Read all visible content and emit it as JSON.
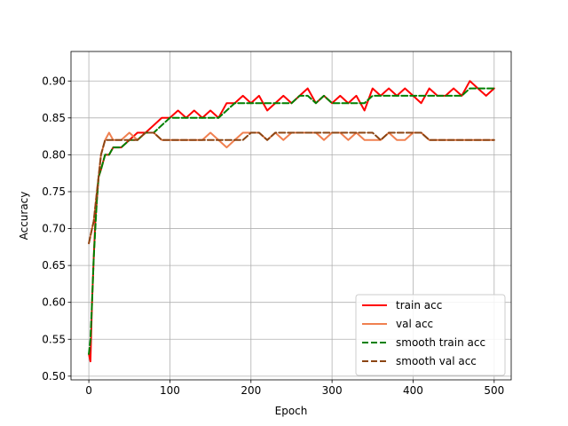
{
  "chart_data": {
    "type": "line",
    "title": "",
    "xlabel": "Epoch",
    "ylabel": "Accuracy",
    "xlim": [
      -22,
      521
    ],
    "ylim": [
      0.495,
      0.94
    ],
    "xticks": [
      0,
      100,
      200,
      300,
      400,
      500
    ],
    "xtick_labels": [
      "0",
      "100",
      "200",
      "300",
      "400",
      "500"
    ],
    "yticks": [
      0.5,
      0.55,
      0.6,
      0.65,
      0.7,
      0.75,
      0.8,
      0.85,
      0.9
    ],
    "ytick_labels": [
      "0.50",
      "0.55",
      "0.60",
      "0.65",
      "0.70",
      "0.75",
      "0.80",
      "0.85",
      "0.90"
    ],
    "grid": true,
    "legend_position": "lower-right",
    "series": [
      {
        "name": "train acc",
        "color": "#ff0000",
        "style": "solid",
        "x": [
          0,
          2,
          4,
          6,
          8,
          10,
          12,
          15,
          20,
          25,
          30,
          40,
          50,
          60,
          70,
          80,
          90,
          100,
          110,
          120,
          130,
          140,
          150,
          160,
          170,
          180,
          190,
          200,
          210,
          220,
          230,
          240,
          250,
          260,
          270,
          280,
          290,
          300,
          310,
          320,
          330,
          340,
          350,
          360,
          370,
          380,
          390,
          400,
          410,
          420,
          430,
          440,
          450,
          460,
          470,
          480,
          490,
          500
        ],
        "y": [
          0.53,
          0.52,
          0.6,
          0.66,
          0.71,
          0.74,
          0.77,
          0.78,
          0.8,
          0.8,
          0.81,
          0.81,
          0.82,
          0.83,
          0.83,
          0.84,
          0.85,
          0.85,
          0.86,
          0.85,
          0.86,
          0.85,
          0.86,
          0.85,
          0.87,
          0.87,
          0.88,
          0.87,
          0.88,
          0.86,
          0.87,
          0.88,
          0.87,
          0.88,
          0.89,
          0.87,
          0.88,
          0.87,
          0.88,
          0.87,
          0.88,
          0.86,
          0.89,
          0.88,
          0.89,
          0.88,
          0.89,
          0.88,
          0.87,
          0.89,
          0.88,
          0.88,
          0.89,
          0.88,
          0.9,
          0.89,
          0.88,
          0.89
        ]
      },
      {
        "name": "val acc",
        "color": "#f08050",
        "style": "solid",
        "x": [
          0,
          2,
          4,
          6,
          8,
          10,
          12,
          15,
          20,
          25,
          30,
          40,
          50,
          60,
          70,
          80,
          90,
          100,
          110,
          120,
          130,
          140,
          150,
          160,
          170,
          180,
          190,
          200,
          210,
          220,
          230,
          240,
          250,
          260,
          270,
          280,
          290,
          300,
          310,
          320,
          330,
          340,
          350,
          360,
          370,
          380,
          390,
          400,
          410,
          420,
          430,
          440,
          450,
          460,
          470,
          480,
          490,
          500
        ],
        "y": [
          0.68,
          0.69,
          0.7,
          0.71,
          0.73,
          0.75,
          0.77,
          0.8,
          0.82,
          0.83,
          0.82,
          0.82,
          0.83,
          0.82,
          0.83,
          0.83,
          0.82,
          0.82,
          0.82,
          0.82,
          0.82,
          0.82,
          0.83,
          0.82,
          0.81,
          0.82,
          0.83,
          0.83,
          0.83,
          0.82,
          0.83,
          0.82,
          0.83,
          0.83,
          0.83,
          0.83,
          0.82,
          0.83,
          0.83,
          0.82,
          0.83,
          0.82,
          0.82,
          0.82,
          0.83,
          0.82,
          0.82,
          0.83,
          0.83,
          0.82,
          0.82,
          0.82,
          0.82,
          0.82,
          0.82,
          0.82,
          0.82,
          0.82
        ]
      },
      {
        "name": "smooth train acc",
        "color": "#008000",
        "style": "dashed",
        "x": [
          0,
          2,
          4,
          6,
          8,
          10,
          12,
          15,
          20,
          25,
          30,
          40,
          50,
          60,
          70,
          80,
          90,
          100,
          110,
          120,
          130,
          140,
          150,
          160,
          170,
          180,
          190,
          200,
          210,
          220,
          230,
          240,
          250,
          260,
          270,
          280,
          290,
          300,
          310,
          320,
          330,
          340,
          350,
          360,
          370,
          380,
          390,
          400,
          410,
          420,
          430,
          440,
          450,
          460,
          470,
          480,
          490,
          500
        ],
        "y": [
          0.53,
          0.55,
          0.6,
          0.66,
          0.7,
          0.74,
          0.77,
          0.78,
          0.8,
          0.8,
          0.81,
          0.81,
          0.82,
          0.82,
          0.83,
          0.83,
          0.84,
          0.85,
          0.85,
          0.85,
          0.85,
          0.85,
          0.85,
          0.85,
          0.86,
          0.87,
          0.87,
          0.87,
          0.87,
          0.87,
          0.87,
          0.87,
          0.87,
          0.88,
          0.88,
          0.87,
          0.88,
          0.87,
          0.87,
          0.87,
          0.87,
          0.87,
          0.88,
          0.88,
          0.88,
          0.88,
          0.88,
          0.88,
          0.88,
          0.88,
          0.88,
          0.88,
          0.88,
          0.88,
          0.89,
          0.89,
          0.89,
          0.89
        ]
      },
      {
        "name": "smooth val acc",
        "color": "#8b4513",
        "style": "dashed",
        "x": [
          0,
          2,
          4,
          6,
          8,
          10,
          12,
          15,
          20,
          25,
          30,
          40,
          50,
          60,
          70,
          80,
          90,
          100,
          110,
          120,
          130,
          140,
          150,
          160,
          170,
          180,
          190,
          200,
          210,
          220,
          230,
          240,
          250,
          260,
          270,
          280,
          290,
          300,
          310,
          320,
          330,
          340,
          350,
          360,
          370,
          380,
          390,
          400,
          410,
          420,
          430,
          440,
          450,
          460,
          470,
          480,
          490,
          500
        ],
        "y": [
          0.68,
          0.69,
          0.7,
          0.71,
          0.73,
          0.75,
          0.77,
          0.8,
          0.82,
          0.82,
          0.82,
          0.82,
          0.82,
          0.82,
          0.83,
          0.83,
          0.82,
          0.82,
          0.82,
          0.82,
          0.82,
          0.82,
          0.82,
          0.82,
          0.82,
          0.82,
          0.82,
          0.83,
          0.83,
          0.82,
          0.83,
          0.83,
          0.83,
          0.83,
          0.83,
          0.83,
          0.83,
          0.83,
          0.83,
          0.83,
          0.83,
          0.83,
          0.83,
          0.82,
          0.83,
          0.83,
          0.83,
          0.83,
          0.83,
          0.82,
          0.82,
          0.82,
          0.82,
          0.82,
          0.82,
          0.82,
          0.82,
          0.82
        ]
      }
    ]
  }
}
